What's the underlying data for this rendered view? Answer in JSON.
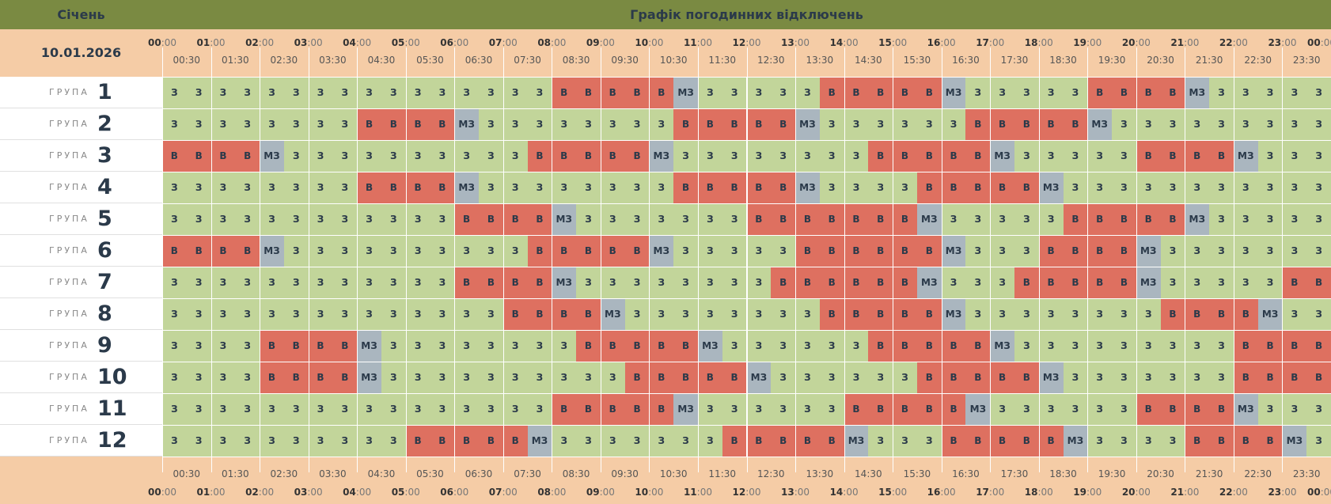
{
  "header": {
    "month": "Січень",
    "title": "Графік погодинних відключень"
  },
  "date": "10.01.2026",
  "row_label_word": "ГРУПА",
  "hour_labels": [
    {
      "h": "00",
      "m": ":00"
    },
    {
      "h": "01",
      "m": ":00"
    },
    {
      "h": "02",
      "m": ":00"
    },
    {
      "h": "03",
      "m": ":00"
    },
    {
      "h": "04",
      "m": ":00"
    },
    {
      "h": "05",
      "m": ":00"
    },
    {
      "h": "06",
      "m": ":00"
    },
    {
      "h": "07",
      "m": ":00"
    },
    {
      "h": "08",
      "m": ":00"
    },
    {
      "h": "09",
      "m": ":00"
    },
    {
      "h": "10",
      "m": ":00"
    },
    {
      "h": "11",
      "m": ":00"
    },
    {
      "h": "12",
      "m": ":00"
    },
    {
      "h": "13",
      "m": ":00"
    },
    {
      "h": "14",
      "m": ":00"
    },
    {
      "h": "15",
      "m": ":00"
    },
    {
      "h": "16",
      "m": ":00"
    },
    {
      "h": "17",
      "m": ":00"
    },
    {
      "h": "18",
      "m": ":00"
    },
    {
      "h": "19",
      "m": ":00"
    },
    {
      "h": "20",
      "m": ":00"
    },
    {
      "h": "21",
      "m": ":00"
    },
    {
      "h": "22",
      "m": ":00"
    },
    {
      "h": "23",
      "m": ":00"
    },
    {
      "h": "00",
      "m": ":00"
    }
  ],
  "half_labels": [
    "00:30",
    "01:30",
    "02:30",
    "03:30",
    "04:30",
    "05:30",
    "06:30",
    "07:30",
    "08:30",
    "09:30",
    "10:30",
    "11:30",
    "12:30",
    "13:30",
    "14:30",
    "15:30",
    "16:30",
    "17:30",
    "18:30",
    "19:30",
    "20:30",
    "21:30",
    "22:30",
    "23:30"
  ],
  "status_text": {
    "z": "З",
    "v": "В",
    "mz": "МЗ"
  },
  "status_colors": {
    "z": "#c2d59a",
    "v": "#de7060",
    "mz": "#aab6bf"
  },
  "groups": [
    {
      "num": "1",
      "slots": "zzzzzzzzzzzzzzzzvvvvvmzzzzzzvvvvvmzzzzzzvvvvmzzzzzz"
    },
    {
      "num": "2",
      "slots": "zzzzzzzzvvvvmzzzzzzzzzvvvvvmzzzzzzzvvvvvmzzzzzzzzz"
    },
    {
      "num": "3",
      "slots": "vvvvmzzzzzzzzzzzvvvvvmzzzzzzzzzvvvvvmzzzzzzvvvvmzz"
    },
    {
      "num": "4",
      "slots": "zzzzzzzzvvvvmzzzzzzzzzvvvvvmzzzzzvvvvvmzzzzzzzzzzz"
    },
    {
      "num": "5",
      "slots": "zzzzzzzzzzzzvvvvmzzzzzzzzvvvvvvvmzzzzzzvvvvvmzzzzzzz"
    },
    {
      "num": "6",
      "slots": "vvvvmzzzzzzzzzzzvvvvvmzzzzzzvvvvvvmzzzzvvvvmzzzzzzz"
    },
    {
      "num": "7",
      "slots": "zzzzzzzzzzzzvvvvmzzzzzzzzzvvvvvvmzzzzvvvvvmzzzzzzvv"
    },
    {
      "num": "8",
      "slots": "zzzzzzzzzzzzzzvvvvmzzzzzzzzzvvvvvmzzzzzzzzzvvvvmzz"
    },
    {
      "num": "9",
      "slots": "zzzzvvvvmzzzzzzzzzvvvvvmzzzzzzzvvvvvmzzzzzzzzzzvvvv"
    },
    {
      "num": "10",
      "slots": "zzzzvvvvmzzzzzzzzzzzvvvvvmzzzzzzzvvvvvmzzzzzzzzvvvv"
    },
    {
      "num": "11",
      "slots": "zzzzzzzzzzzzzzzzvvvvvmzzzzzzzvvvvvmzzzzzzzvvvvmzzz"
    },
    {
      "num": "12",
      "slots": "zzzzzzzzzzvvvvvmzzzzzzzzvvvvvmzzzzvvvvvmzzzzzvvvvmzz"
    }
  ]
}
